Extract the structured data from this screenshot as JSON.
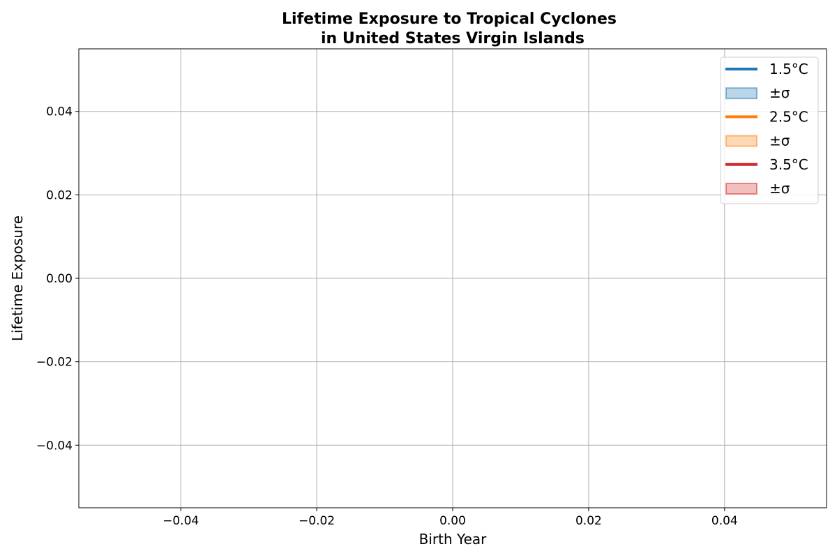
{
  "chart_data": {
    "type": "line",
    "title": [
      "Lifetime Exposure to Tropical Cyclones",
      "in United States Virgin Islands"
    ],
    "xlabel": "Birth Year",
    "ylabel": "Lifetime Exposure",
    "xlim": [
      -0.055,
      0.055
    ],
    "ylim": [
      -0.055,
      0.055
    ],
    "xticks": [
      -0.04,
      -0.02,
      0.0,
      0.02,
      0.04
    ],
    "xtick_labels": [
      "−0.04",
      "−0.02",
      "0.00",
      "0.02",
      "0.04"
    ],
    "yticks": [
      -0.04,
      -0.02,
      0.0,
      0.02,
      0.04
    ],
    "ytick_labels": [
      "−0.04",
      "−0.02",
      "0.00",
      "0.02",
      "0.04"
    ],
    "grid": true,
    "legend_position": "top-right",
    "legend": [
      {
        "label": "1.5°C",
        "kind": "line",
        "color": "#1f77b4"
      },
      {
        "label": "±σ",
        "kind": "band",
        "color": "#1f77b4"
      },
      {
        "label": "2.5°C",
        "kind": "line",
        "color": "#ff7f0e"
      },
      {
        "label": "±σ",
        "kind": "band",
        "color": "#ff7f0e"
      },
      {
        "label": "3.5°C",
        "kind": "line",
        "color": "#d62728"
      },
      {
        "label": "±σ",
        "kind": "band",
        "color": "#d62728"
      }
    ],
    "series": [
      {
        "name": "1.5°C",
        "x": [],
        "y": [],
        "color": "#1f77b4"
      },
      {
        "name": "2.5°C",
        "x": [],
        "y": [],
        "color": "#ff7f0e"
      },
      {
        "name": "3.5°C",
        "x": [],
        "y": [],
        "color": "#d62728"
      }
    ]
  }
}
